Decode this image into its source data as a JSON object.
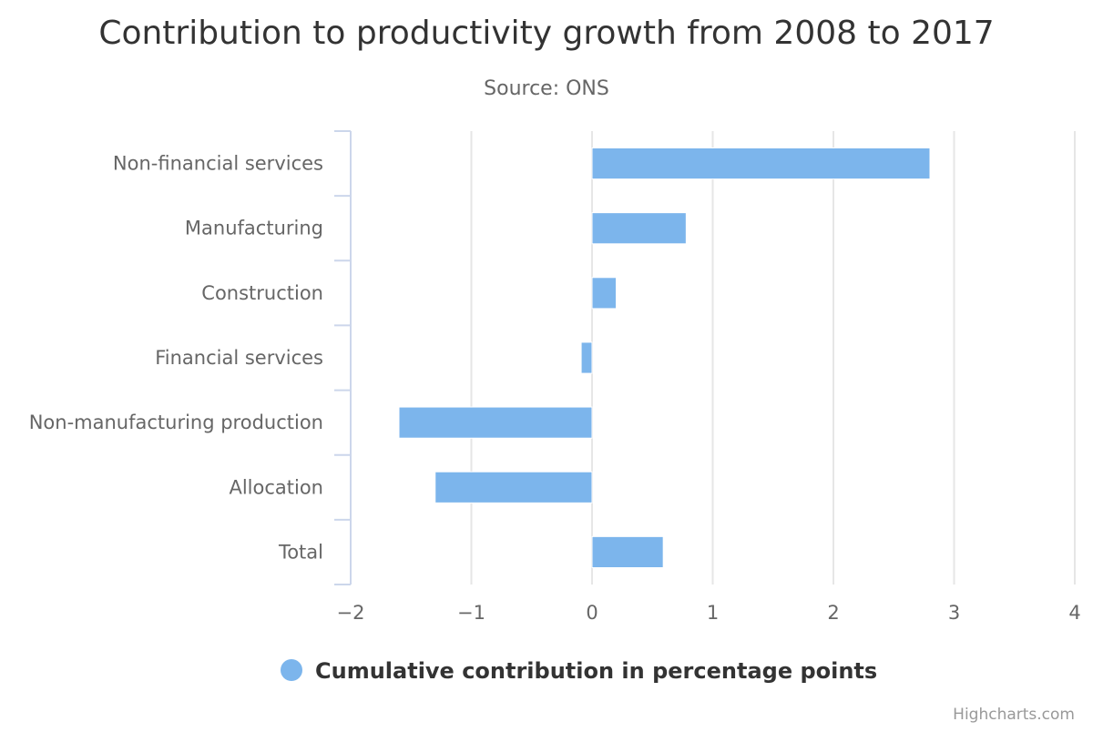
{
  "chart_data": {
    "type": "bar",
    "orientation": "horizontal",
    "title": "Contribution to productivity growth from 2008 to 2017",
    "subtitle": "Source: ONS",
    "categories": [
      "Non-financial services",
      "Manufacturing",
      "Construction",
      "Financial services",
      "Non-manufacturing production",
      "Allocation",
      "Total"
    ],
    "series": [
      {
        "name": "Cumulative contribution in percentage points",
        "color": "#7cb5ec",
        "values": [
          2.8,
          0.78,
          0.2,
          -0.09,
          -1.6,
          -1.3,
          0.59
        ]
      }
    ],
    "xlim": [
      -2,
      4
    ],
    "ticks": [
      "−2",
      "−1",
      "0",
      "1",
      "2",
      "3",
      "4"
    ],
    "grid": true,
    "legend": "bottom-center",
    "credits": "Highcharts.com"
  }
}
